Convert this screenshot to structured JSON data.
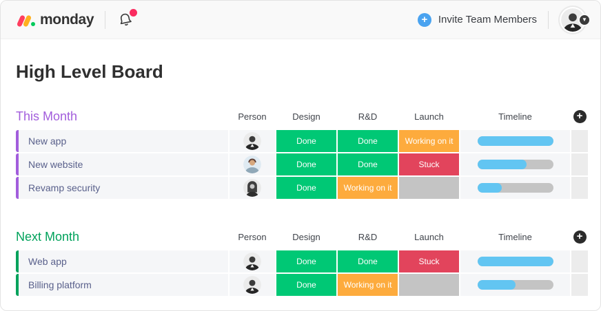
{
  "topbar": {
    "logo_text": "monday",
    "invite_label": "Invite Team Members",
    "icons": {
      "logo": "monday-logo",
      "notifications": "bell-icon",
      "notification_badge_color": "#fa2c60",
      "invite": "plus-icon",
      "invite_color": "#4aa3f0",
      "profile_menu": "chevron-down-icon"
    }
  },
  "page_title": "High Level Board",
  "board": {
    "columns": [
      "Person",
      "Design",
      "R&D",
      "Launch",
      "Timeline"
    ],
    "add_column_icon": "plus-icon",
    "status_palette": {
      "done": "#00c875",
      "working": "#fdab3d",
      "stuck": "#e2445c",
      "empty": "#c4c4c4"
    },
    "timeline_palette": {
      "fill": "#62c5f2",
      "track": "#c4c4c4"
    },
    "groups": [
      {
        "title": "This Month",
        "color": "#a25ddc",
        "rows": [
          {
            "name": "New app",
            "person": "person-1",
            "statuses": [
              {
                "label": "Done",
                "key": "done"
              },
              {
                "label": "Done",
                "key": "done"
              },
              {
                "label": "Working on it",
                "key": "working"
              }
            ],
            "timeline_percent": 100
          },
          {
            "name": "New website",
            "person": "person-2",
            "statuses": [
              {
                "label": "Done",
                "key": "done"
              },
              {
                "label": "Done",
                "key": "done"
              },
              {
                "label": "Stuck",
                "key": "stuck"
              }
            ],
            "timeline_percent": 65
          },
          {
            "name": "Revamp security",
            "person": "person-3",
            "statuses": [
              {
                "label": "Done",
                "key": "done"
              },
              {
                "label": "Working on it",
                "key": "working"
              },
              {
                "label": "",
                "key": "empty"
              }
            ],
            "timeline_percent": 32
          }
        ]
      },
      {
        "title": "Next Month",
        "color": "#00a25b",
        "rows": [
          {
            "name": "Web app",
            "person": "person-1",
            "statuses": [
              {
                "label": "Done",
                "key": "done"
              },
              {
                "label": "Done",
                "key": "done"
              },
              {
                "label": "Stuck",
                "key": "stuck"
              }
            ],
            "timeline_percent": 100
          },
          {
            "name": "Billing platform",
            "person": "person-1",
            "statuses": [
              {
                "label": "Done",
                "key": "done"
              },
              {
                "label": "Working on it",
                "key": "working"
              },
              {
                "label": "",
                "key": "empty"
              }
            ],
            "timeline_percent": 50
          }
        ]
      }
    ]
  }
}
